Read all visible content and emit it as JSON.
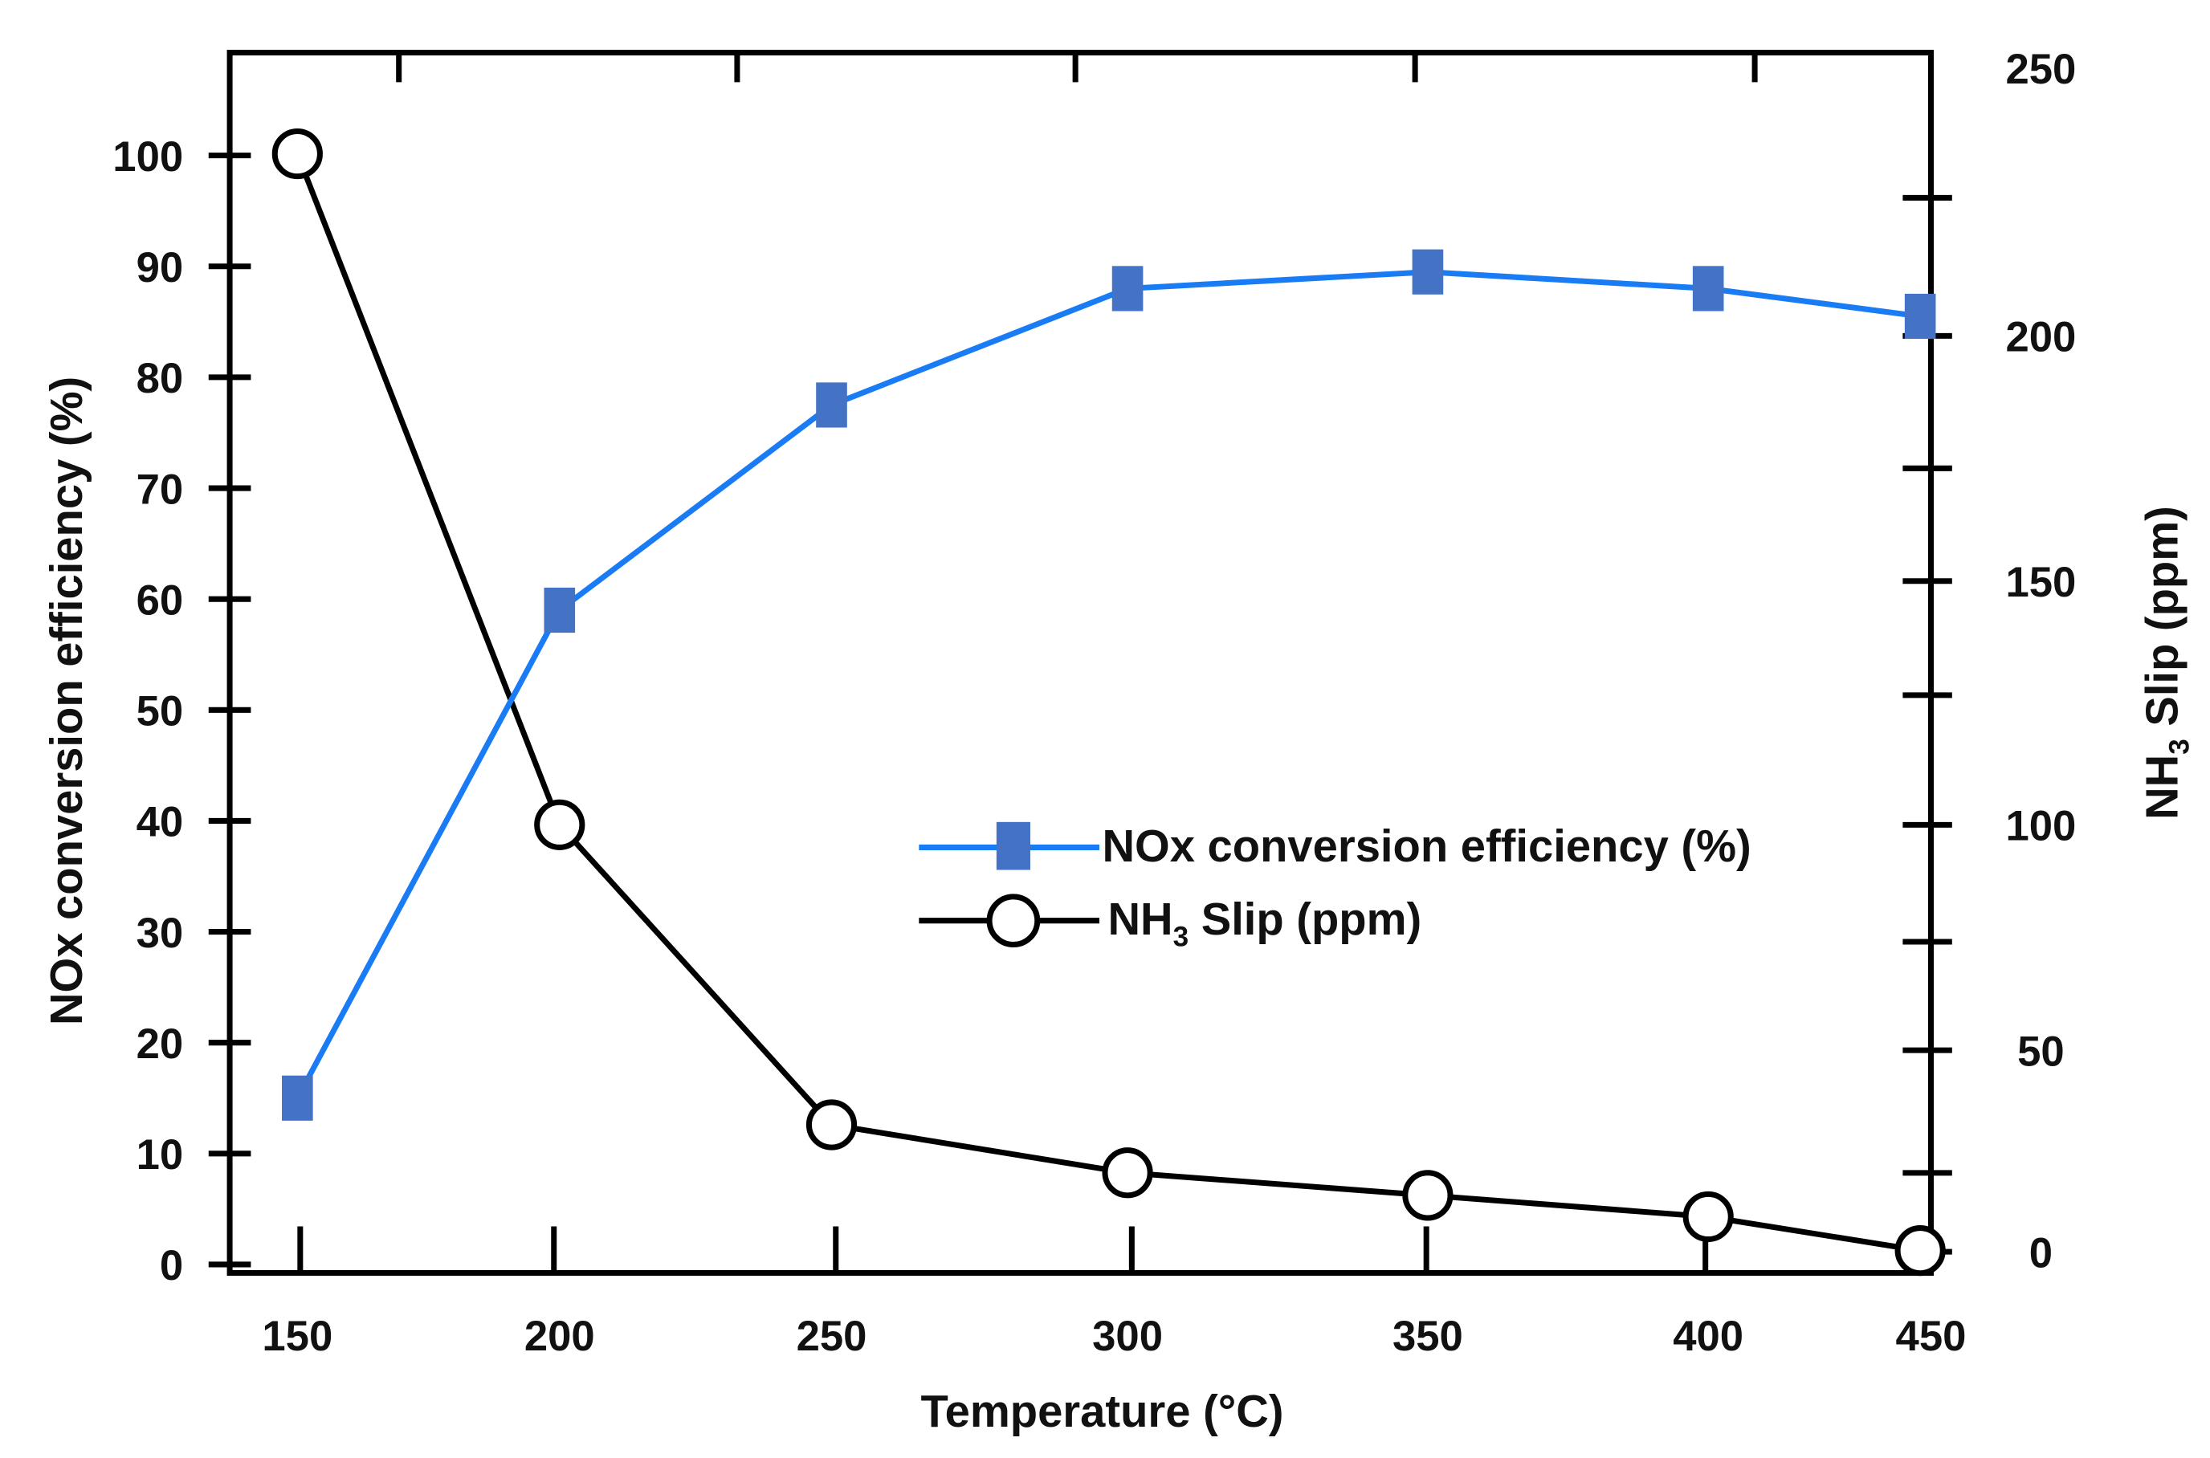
{
  "chart_data": {
    "type": "line",
    "title": "",
    "xlabel": "Temperature (°C)",
    "ylabel": "NOx conversion efficiency (%)",
    "y2label_main": "NH",
    "y2label_sub": "3",
    "y2label_rest": " Slip (ppm)",
    "xlim": [
      150,
      450
    ],
    "ylim": [
      0,
      100
    ],
    "y2lim": [
      0,
      250
    ],
    "x_ticks": [
      "150",
      "200",
      "250",
      "300",
      "350",
      "400",
      "450"
    ],
    "y_ticks": [
      "0",
      "10",
      "20",
      "30",
      "40",
      "50",
      "60",
      "70",
      "80",
      "90",
      "100"
    ],
    "y2_ticks": [
      "0",
      "50",
      "100",
      "150",
      "200",
      "250"
    ],
    "legend_placement": "center-right",
    "series": [
      {
        "name": "NOx conversion efficiency (%)",
        "axis": "left",
        "color": "#1a7cf5",
        "marker": "square",
        "marker_color": "#4472c4",
        "x": [
          150,
          200,
          250,
          300,
          350,
          400,
          447
        ],
        "values": [
          15,
          59,
          77.5,
          88,
          89.5,
          88,
          85.5
        ]
      },
      {
        "name_main": "NH",
        "name_sub": "3",
        "name_rest": " Slip (ppm)",
        "axis": "right",
        "color": "#000000",
        "marker": "open-circle",
        "x": [
          150,
          200,
          250,
          300,
          350,
          400,
          447
        ],
        "values": [
          234,
          100,
          31.5,
          19.6,
          14,
          8.7,
          0.3
        ]
      }
    ]
  }
}
